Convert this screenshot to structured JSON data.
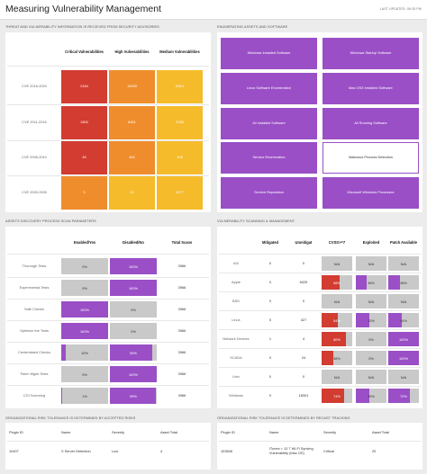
{
  "header": {
    "title": "Measuring Vulnerability Management",
    "last_updated": "LAST UPDATED: 08:35 PM"
  },
  "threat": {
    "title": "THREAT AND VULNERABILITY INFORMATION IS RECEIVED FROM SECURITY ADVISORIES",
    "columns": [
      "Critical Vulnerabilities",
      "High Vulnerabilities",
      "Medium Vulnerabilities"
    ],
    "rows": [
      {
        "label": "CVE 2016-2020",
        "values": [
          "2164",
          "10005",
          "6914"
        ]
      },
      {
        "label": "CVE 2011-2015",
        "values": [
          "1800",
          "8461",
          "2238"
        ]
      },
      {
        "label": "CVE 2006-2010",
        "values": [
          "45",
          "482",
          "108"
        ]
      },
      {
        "label": "CVE 2000-2005",
        "values": [
          "3",
          "11",
          "2477"
        ]
      }
    ],
    "colors": {
      "red": "#d23c31",
      "orange": "#ef8d2c",
      "yellow": "#f5bb2b"
    }
  },
  "enum": {
    "title": "ENUMERATING ASSETS AND SOFTWARE",
    "tiles": [
      [
        "Windows Installed Software",
        "Windows Startup Software"
      ],
      [
        "Linux Software Enumeration",
        "Mac OSX Installed Software"
      ],
      [
        "All Installed Software",
        "All Running Software"
      ],
      [
        "Service Enumeration",
        "Malicious Process Detection"
      ],
      [
        "Service Reputation",
        "Microsoft Windows Processes"
      ]
    ],
    "accent": "#9a4fc6"
  },
  "scan": {
    "title": "ASSETS DISCOVERY PROCESS SCAN PARAMETERS",
    "columns": [
      "Enabled/Yes",
      "Disabled/No",
      "Total Scans"
    ],
    "rows": [
      {
        "label": "Thorough Tests",
        "enabled": "0%",
        "enabled_pct": 0,
        "disabled": "100%",
        "disabled_pct": 100,
        "total": "3966"
      },
      {
        "label": "Experimental Tests",
        "enabled": "0%",
        "enabled_pct": 0,
        "disabled": "100%",
        "disabled_pct": 100,
        "total": "3966"
      },
      {
        "label": "Safe Checks",
        "enabled": "100%",
        "enabled_pct": 100,
        "disabled": "0%",
        "disabled_pct": 0,
        "total": "3966"
      },
      {
        "label": "Optimize the Tests",
        "enabled": "100%",
        "enabled_pct": 100,
        "disabled": "0%",
        "disabled_pct": 0,
        "total": "3966"
      },
      {
        "label": "Credentialed Checks",
        "enabled": "10%",
        "enabled_pct": 10,
        "disabled": "90%",
        "disabled_pct": 90,
        "total": "3966"
      },
      {
        "label": "Patch Mgmt Tests",
        "enabled": "0%",
        "enabled_pct": 0,
        "disabled": "100%",
        "disabled_pct": 100,
        "total": "3966"
      },
      {
        "label": "CGI Scanning",
        "enabled": "1%",
        "enabled_pct": 1,
        "disabled": "99%",
        "disabled_pct": 99,
        "total": "3966"
      }
    ]
  },
  "vuln": {
    "title": "VULNERABILITY SCANNING & MANAGEMENT",
    "columns": [
      "Mitigated",
      "Unmitigat",
      "CVSS>=7",
      "Exploited",
      "Patch Available"
    ],
    "rows": [
      {
        "label": "AIX",
        "mitigated": "0",
        "unmitigated": "0",
        "cvss": "N/A",
        "cvss_pct": 0,
        "exploited": "N/A",
        "exploited_pct": 0,
        "patch": "N/A",
        "patch_pct": 0
      },
      {
        "label": "Apple",
        "mitigated": "0",
        "unmitigated": "6025",
        "cvss": "58%",
        "cvss_pct": 58,
        "exploited": "36%",
        "exploited_pct": 36,
        "patch": "38%",
        "patch_pct": 38
      },
      {
        "label": "BSD",
        "mitigated": "0",
        "unmitigated": "0",
        "cvss": "N/A",
        "cvss_pct": 0,
        "exploited": "N/A",
        "exploited_pct": 0,
        "patch": "N/A",
        "patch_pct": 0
      },
      {
        "label": "Linux",
        "mitigated": "0",
        "unmitigated": "427",
        "cvss": "54%",
        "cvss_pct": 54,
        "exploited": "43%",
        "exploited_pct": 43,
        "patch": "44%",
        "patch_pct": 44
      },
      {
        "label": "Network Devices",
        "mitigated": "1",
        "unmitigated": "4",
        "cvss": "80%",
        "cvss_pct": 80,
        "exploited": "0%",
        "exploited_pct": 0,
        "patch": "100%",
        "patch_pct": 100
      },
      {
        "label": "SCADA",
        "mitigated": "0",
        "unmitigated": "24",
        "cvss": "38%",
        "cvss_pct": 38,
        "exploited": "0%",
        "exploited_pct": 0,
        "patch": "100%",
        "patch_pct": 100
      },
      {
        "label": "Unix",
        "mitigated": "0",
        "unmitigated": "0",
        "cvss": "N/A",
        "cvss_pct": 0,
        "exploited": "N/A",
        "exploited_pct": 0,
        "patch": "N/A",
        "patch_pct": 0
      },
      {
        "label": "Windows",
        "mitigated": "0",
        "unmitigated": "18301",
        "cvss": "74%",
        "cvss_pct": 74,
        "exploited": "45%",
        "exploited_pct": 45,
        "patch": "72%",
        "patch_pct": 72
      }
    ]
  },
  "risk_left": {
    "title": "ORGANIZATIONAL RISK TOLERANCE IS DETERMINED BY ACCEPTED RISKS",
    "columns": [
      "Plugin ID",
      "Name",
      "Severity",
      "Asset Total"
    ],
    "row": [
      "10407",
      "X Server Detection",
      "Low",
      "4"
    ]
  },
  "risk_right": {
    "title": "ORGANIZATIONAL RISK TOLERANCE IS DETERMINED BY RECAST TRACKING",
    "columns": [
      "Plugin ID",
      "Name",
      "Severity",
      "Asset Total"
    ],
    "row": [
      "103506",
      "iTunes < 12.7 Wi-Fi Syncing Vulnerability (Mac OS)",
      "Critical",
      "20"
    ]
  }
}
